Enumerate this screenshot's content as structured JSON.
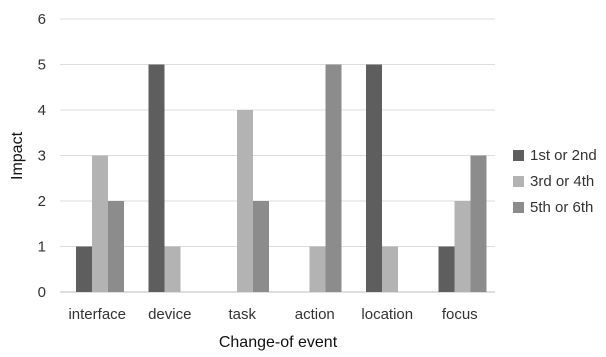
{
  "chart_data": {
    "type": "bar",
    "title": "",
    "xlabel": "Change-of event",
    "ylabel": "Impact",
    "categories": [
      "interface",
      "device",
      "task",
      "action",
      "location",
      "focus"
    ],
    "series": [
      {
        "name": "1st or 2nd",
        "values": [
          1,
          5,
          0,
          0,
          5,
          1
        ],
        "color": "#5e5e5e"
      },
      {
        "name": "3rd or 4th",
        "values": [
          3,
          1,
          4,
          1,
          1,
          2
        ],
        "color": "#b3b3b3"
      },
      {
        "name": "5th or 6th",
        "values": [
          2,
          0,
          2,
          5,
          0,
          3
        ],
        "color": "#8c8c8c"
      }
    ],
    "ylim": [
      0,
      6
    ],
    "yticks": [
      0,
      1,
      2,
      3,
      4,
      5,
      6
    ],
    "grid": true,
    "legend_position": "right"
  }
}
